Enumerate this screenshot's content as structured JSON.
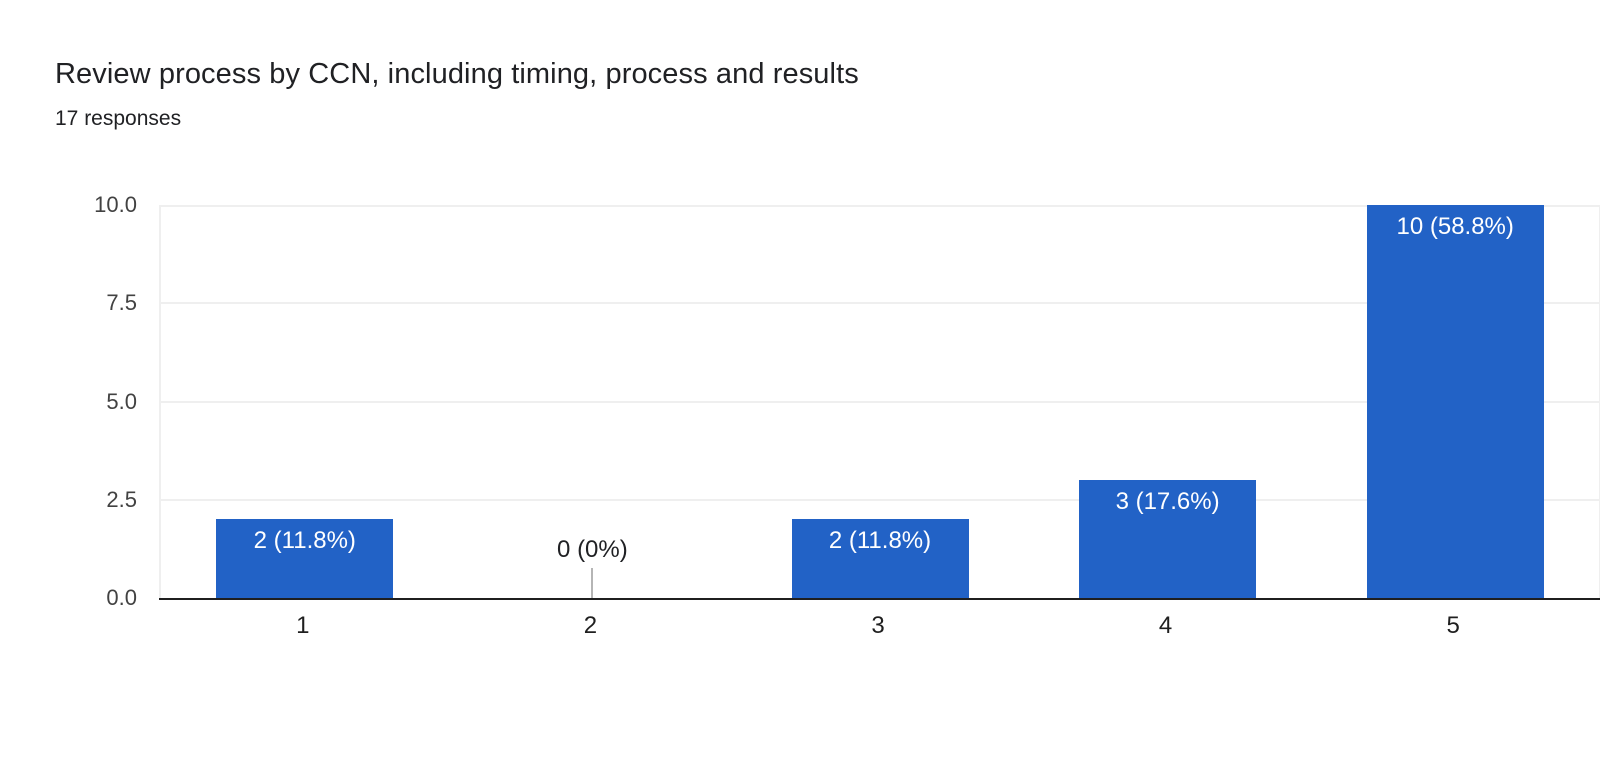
{
  "header": {
    "title": "Review process by CCN, including timing, process and results",
    "subtitle": "17 responses"
  },
  "colors": {
    "bar": "#2262c6",
    "bar_label_text": "#ffffff",
    "title_text": "#202124",
    "axis_line": "#1f1f1f",
    "gridline": "#efefef",
    "tick_text": "#424242"
  },
  "chart_data": {
    "type": "bar",
    "title": "Review process by CCN, including timing, process and results",
    "subtitle": "17 responses",
    "categories": [
      "1",
      "2",
      "3",
      "4",
      "5"
    ],
    "values": [
      2,
      0,
      2,
      3,
      10
    ],
    "bar_labels": [
      "2 (11.8%)",
      "0 (0%)",
      "2 (11.8%)",
      "3 (17.6%)",
      "10 (58.8%)"
    ],
    "xlabel": "",
    "ylabel": "",
    "ylim": [
      0,
      10
    ],
    "yticks": [
      0,
      2.5,
      5,
      7.5,
      10
    ],
    "ytick_labels": [
      "0.0",
      "2.5",
      "5.0",
      "7.5",
      "10.0"
    ],
    "grid": true,
    "legend": false,
    "bar_color": "#2262c6"
  }
}
